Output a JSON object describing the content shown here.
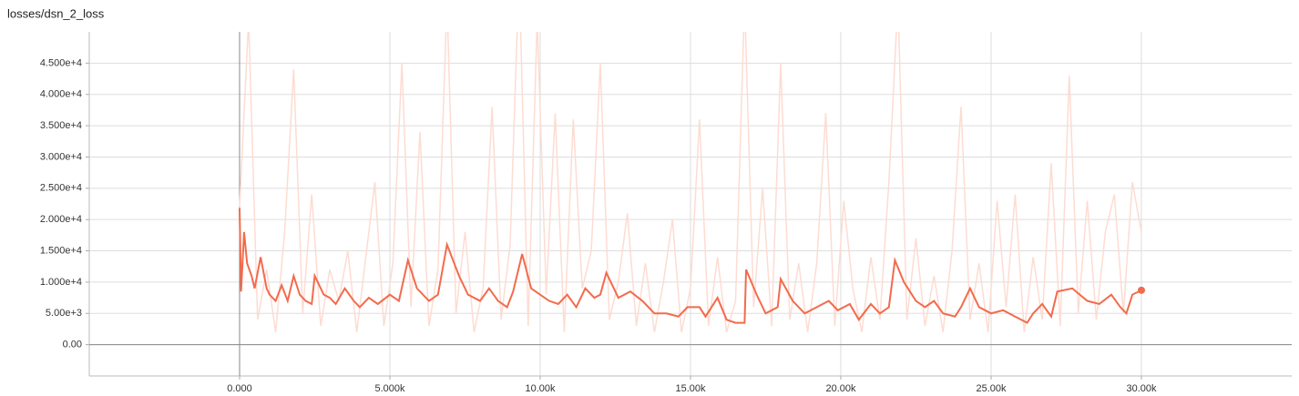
{
  "chart_data": {
    "type": "line",
    "title": "losses/dsn_2_loss",
    "xlim": [
      -5000,
      35000
    ],
    "ylim": [
      -5000,
      50000
    ],
    "xticks": [
      {
        "value": 0,
        "label": "0.000"
      },
      {
        "value": 5000,
        "label": "5.000k"
      },
      {
        "value": 10000,
        "label": "10.00k"
      },
      {
        "value": 15000,
        "label": "15.00k"
      },
      {
        "value": 20000,
        "label": "20.00k"
      },
      {
        "value": 25000,
        "label": "25.00k"
      },
      {
        "value": 30000,
        "label": "30.00k"
      }
    ],
    "yticks": [
      {
        "value": 0,
        "label": "0.00"
      },
      {
        "value": 5000,
        "label": "5.00e+3"
      },
      {
        "value": 10000,
        "label": "1.000e+4"
      },
      {
        "value": 15000,
        "label": "1.500e+4"
      },
      {
        "value": 20000,
        "label": "2.000e+4"
      },
      {
        "value": 25000,
        "label": "2.500e+4"
      },
      {
        "value": 30000,
        "label": "3.000e+4"
      },
      {
        "value": 35000,
        "label": "3.500e+4"
      },
      {
        "value": 40000,
        "label": "4.000e+4"
      },
      {
        "value": 45000,
        "label": "4.500e+4"
      }
    ],
    "grid": true,
    "series": [
      {
        "color": "#fddcd2",
        "x": [
          0,
          300,
          600,
          900,
          1200,
          1500,
          1800,
          2100,
          2400,
          2700,
          3000,
          3300,
          3600,
          3900,
          4200,
          4500,
          4800,
          5100,
          5400,
          5700,
          6000,
          6300,
          6600,
          6900,
          7200,
          7500,
          7800,
          8100,
          8400,
          8700,
          9000,
          9300,
          9600,
          9900,
          10200,
          10500,
          10800,
          11100,
          11400,
          11700,
          12000,
          12300,
          12600,
          12900,
          13200,
          13500,
          13800,
          14100,
          14400,
          14700,
          15000,
          15300,
          15600,
          15900,
          16200,
          16500,
          16800,
          17100,
          17400,
          17700,
          18000,
          18300,
          18600,
          18900,
          19200,
          19500,
          19800,
          20100,
          20400,
          20700,
          21000,
          21300,
          21600,
          21900,
          22200,
          22500,
          22800,
          23100,
          23400,
          23700,
          24000,
          24300,
          24600,
          24900,
          25200,
          25500,
          25800,
          26100,
          26400,
          26700,
          27000,
          27300,
          27600,
          27900,
          28200,
          28500,
          28800,
          29100,
          29400,
          29700,
          30000
        ],
        "values": [
          22000,
          52000,
          4000,
          12000,
          2000,
          18000,
          44000,
          5000,
          24000,
          3000,
          12000,
          7000,
          15000,
          2000,
          14000,
          26000,
          3000,
          13000,
          45000,
          6000,
          34000,
          3000,
          12000,
          55000,
          5000,
          18000,
          2000,
          9000,
          38000,
          4000,
          16000,
          60000,
          3000,
          52000,
          8000,
          37000,
          2000,
          36000,
          9000,
          15000,
          45000,
          4000,
          10000,
          21000,
          3000,
          13000,
          2000,
          10000,
          20000,
          2000,
          9000,
          36000,
          3000,
          14000,
          2000,
          7000,
          55000,
          6000,
          25000,
          3000,
          45000,
          4000,
          13000,
          2000,
          13000,
          37000,
          3000,
          23000,
          9000,
          2000,
          14000,
          4000,
          26000,
          55000,
          4000,
          17000,
          3000,
          11000,
          2000,
          15000,
          38000,
          4000,
          13000,
          2000,
          23000,
          6000,
          24000,
          2000,
          14000,
          4000,
          29000,
          3000,
          43000,
          5000,
          23000,
          4000,
          18000,
          24000,
          5000,
          26000,
          18000
        ]
      },
      {
        "color": "#f26b4c",
        "x": [
          0,
          50,
          150,
          250,
          400,
          500,
          700,
          900,
          1000,
          1200,
          1400,
          1600,
          1800,
          2000,
          2200,
          2400,
          2500,
          2800,
          3000,
          3200,
          3500,
          3800,
          4000,
          4300,
          4600,
          5000,
          5300,
          5600,
          5900,
          6300,
          6600,
          6900,
          7300,
          7600,
          8000,
          8300,
          8600,
          8900,
          9100,
          9400,
          9700,
          10000,
          10300,
          10600,
          10900,
          11200,
          11500,
          11800,
          12000,
          12200,
          12600,
          13000,
          13400,
          13800,
          14200,
          14600,
          14900,
          15300,
          15500,
          15900,
          16200,
          16500,
          16800,
          16850,
          17200,
          17500,
          17900,
          18000,
          18400,
          18800,
          19200,
          19600,
          19900,
          20300,
          20600,
          21000,
          21300,
          21600,
          21800,
          22100,
          22500,
          22800,
          23100,
          23400,
          23800,
          24000,
          24300,
          24600,
          25000,
          25400,
          25800,
          26200,
          26400,
          26700,
          27000,
          27200,
          27700,
          28200,
          28600,
          29000,
          29300,
          29500,
          29700,
          30000
        ],
        "values": [
          21800,
          8500,
          18000,
          13000,
          11000,
          9000,
          14000,
          9000,
          8000,
          7000,
          9500,
          7000,
          11000,
          8000,
          7000,
          6500,
          11000,
          8000,
          7500,
          6500,
          9000,
          7000,
          6000,
          7500,
          6500,
          8000,
          7000,
          13500,
          9000,
          7000,
          8000,
          16000,
          11000,
          8000,
          7000,
          9000,
          7000,
          6000,
          8500,
          14500,
          9000,
          8000,
          7000,
          6500,
          8000,
          6000,
          9000,
          7500,
          8000,
          11500,
          7500,
          8500,
          7000,
          5000,
          5000,
          4500,
          6000,
          6000,
          4500,
          7500,
          4000,
          3500,
          3500,
          12000,
          8000,
          5000,
          6000,
          10500,
          7000,
          5000,
          6000,
          7000,
          5500,
          6500,
          4000,
          6500,
          5000,
          6000,
          13500,
          10000,
          7000,
          6000,
          7000,
          5000,
          4500,
          6000,
          9000,
          6000,
          5000,
          5500,
          4500,
          3500,
          5000,
          6500,
          4500,
          8500,
          9000,
          7000,
          6500,
          8000,
          6000,
          5000,
          8000,
          8700
        ]
      }
    ]
  }
}
